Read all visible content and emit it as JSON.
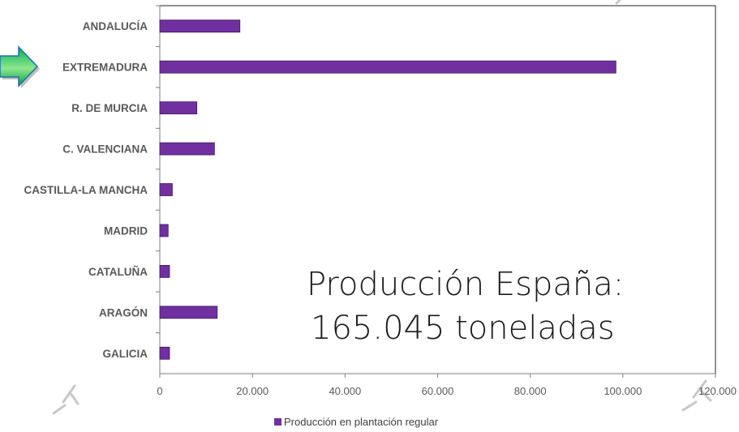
{
  "chart_data": {
    "type": "bar",
    "orientation": "horizontal",
    "categories": [
      "ANDALUCÍA",
      "EXTREMADURA",
      "R. DE MURCIA",
      "C. VALENCIANA",
      "CASTILLA-LA MANCHA",
      "MADRID",
      "CATALUÑA",
      "ARAGÓN",
      "GALICIA"
    ],
    "series": [
      {
        "name": "Producción en plantación regular",
        "values": [
          17300,
          98500,
          8000,
          11800,
          2700,
          1800,
          2100,
          12400,
          2100
        ]
      }
    ],
    "xlim": [
      0,
      120000
    ],
    "xticks": [
      0,
      20000,
      40000,
      60000,
      80000,
      100000,
      120000
    ],
    "xtick_labels": [
      "0",
      "20.000",
      "40.000",
      "60.000",
      "80.000",
      "100.000",
      "120.000"
    ],
    "title": "",
    "xlabel": "",
    "ylabel": "",
    "grid": false,
    "legend_position": "bottom",
    "bar_color": "#7030a0",
    "annotation": {
      "line1": "Producción España:",
      "line2": "165.045 toneladas"
    },
    "highlight_arrow": {
      "target_category": "EXTREMADURA",
      "colors": [
        "#00b050",
        "#a9f0a9"
      ]
    }
  }
}
